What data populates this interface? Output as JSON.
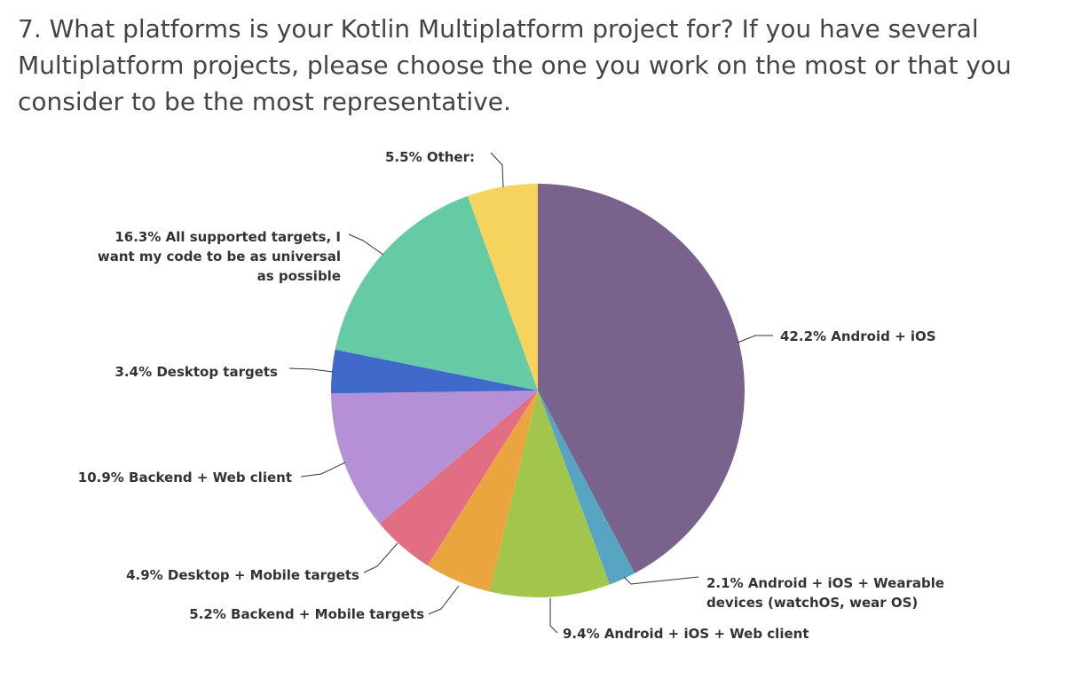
{
  "question": "7. What platforms is your Kotlin Multiplatform project for? If you have several Multiplatform projects, please choose the one you work on the most or that you consider to be the most representative.",
  "chart_data": {
    "type": "pie",
    "title": "",
    "start_angle": "12 o'clock",
    "direction": "clockwise",
    "slices": [
      {
        "label": "Android + iOS",
        "value": 42.2,
        "display": "42.2% Android + iOS",
        "color": "#79628c"
      },
      {
        "label": "Android + iOS + Wearable devices (watchOS, wear OS)",
        "value": 2.1,
        "display_lines": [
          "2.1% Android + iOS + Wearable",
          "devices (watchOS, wear OS)"
        ],
        "color": "#58a4c3"
      },
      {
        "label": "Android + iOS + Web client",
        "value": 9.4,
        "display": "9.4% Android + iOS + Web client",
        "color": "#a1c64b"
      },
      {
        "label": "Backend + Mobile targets",
        "value": 5.2,
        "display": "5.2% Backend + Mobile targets",
        "color": "#eba53f"
      },
      {
        "label": "Desktop + Mobile targets",
        "value": 4.9,
        "display": "4.9% Desktop + Mobile targets",
        "color": "#e26e84"
      },
      {
        "label": "Backend + Web client",
        "value": 10.9,
        "display": "10.9% Backend + Web client",
        "color": "#b690d6"
      },
      {
        "label": "Desktop targets",
        "value": 3.4,
        "display": "3.4% Desktop targets",
        "color": "#4169c9"
      },
      {
        "label": "All supported targets, I want my code to be as universal as possible",
        "value": 16.3,
        "display_lines": [
          "16.3% All supported targets, I",
          "want my code to be as universal",
          "as possible"
        ],
        "color": "#64cba5"
      },
      {
        "label": "Other:",
        "value": 5.5,
        "display": "5.5% Other:",
        "color": "#f6d35d"
      }
    ]
  }
}
